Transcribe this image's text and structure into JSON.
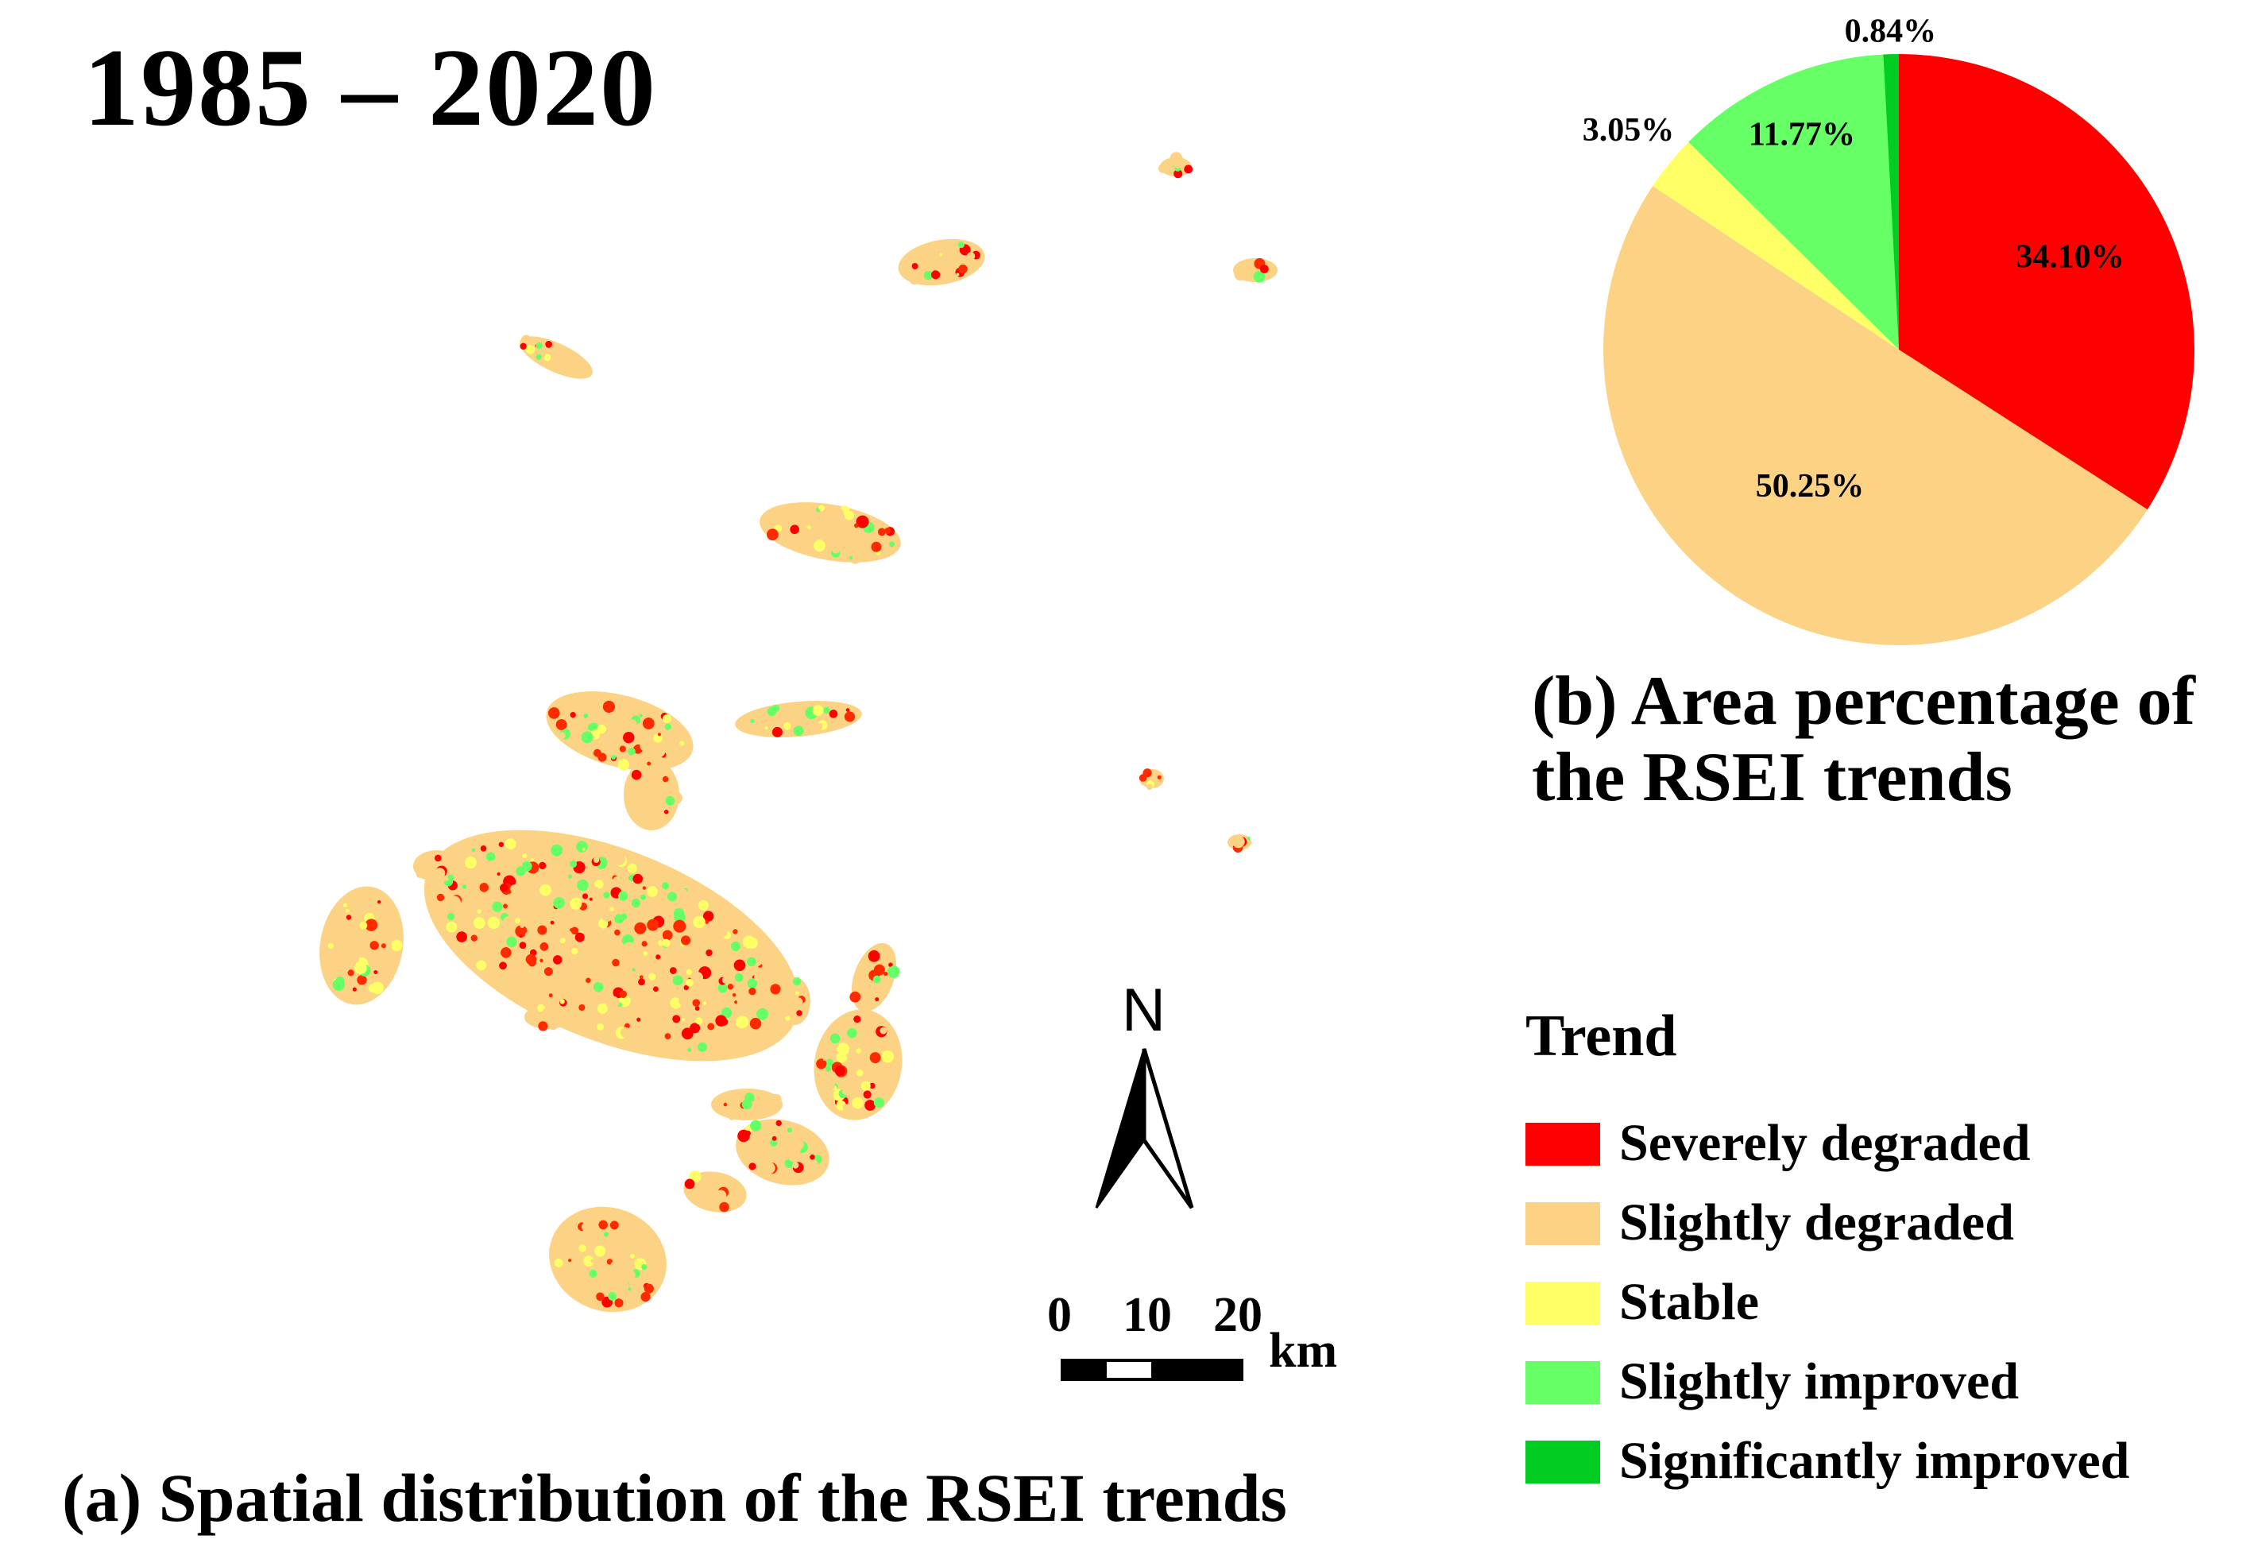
{
  "title": "1985 – 2020",
  "map_caption": "(a) Spatial distribution of the RSEI trends",
  "pie_caption": "(b) Area percentage of the RSEI trends",
  "legend": {
    "title": "Trend",
    "items": [
      {
        "label": "Severely degraded",
        "color": "#ff0000"
      },
      {
        "label": "Slightly degraded",
        "color": "#fcd284"
      },
      {
        "label": "Stable",
        "color": "#ffff66"
      },
      {
        "label": "Slightly improved",
        "color": "#66ff66"
      },
      {
        "label": "Significantly improved",
        "color": "#00cc22"
      }
    ]
  },
  "north_arrow": {
    "label": "N",
    "icon": "north-arrow-icon"
  },
  "scale_bar": {
    "ticks": [
      "0",
      "10",
      "20"
    ],
    "unit": "km"
  },
  "chart_data": {
    "type": "pie",
    "categories": [
      "Severely degraded",
      "Slightly degraded",
      "Stable",
      "Slightly improved",
      "Significantly improved"
    ],
    "values": [
      34.1,
      50.25,
      3.05,
      11.77,
      0.84
    ],
    "labels": [
      "34.10%",
      "50.25%",
      "3.05%",
      "11.77%",
      "0.84%"
    ],
    "colors": [
      "#ff0000",
      "#fcd284",
      "#ffff66",
      "#66ff66",
      "#00cc22"
    ]
  }
}
